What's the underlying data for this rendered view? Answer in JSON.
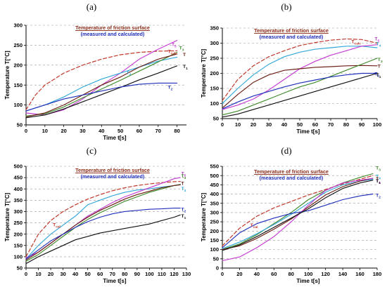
{
  "figure": {
    "series_styles": {
      "T_cal": {
        "color": "#c0392b",
        "dashed": true,
        "label": "T",
        "sub": "cal"
      },
      "T_calc": {
        "color": "#c0392b",
        "dashed": true,
        "label": "T",
        "sub": "calc"
      },
      "T1": {
        "color": "#111111",
        "label": "T",
        "sub": "1"
      },
      "T2": {
        "color": "#1f2fb8",
        "label": "T",
        "sub": "2"
      },
      "T3": {
        "color": "#3f8a2c",
        "label": "T",
        "sub": "3"
      },
      "T4": {
        "color": "#33a8d8",
        "label": "T",
        "sub": "4"
      },
      "T5": {
        "color": "#c23bd0",
        "label": "T",
        "sub": "5"
      },
      "T": {
        "color": "#6b1f14",
        "label": "T",
        "sub": ""
      }
    }
  },
  "chart_data": [
    {
      "panel": "(a)",
      "type": "line",
      "title": "Temperature of friction surface",
      "subtitle": "(measured and calculated)",
      "xlabel": "Time t[s]",
      "ylabel": "Temperature T[°C]",
      "xlim": [
        0,
        85
      ],
      "ylim": [
        50,
        300
      ],
      "xticks": [
        0,
        10,
        20,
        30,
        40,
        50,
        60,
        70,
        80
      ],
      "yticks": [
        50,
        100,
        150,
        200,
        250,
        300
      ],
      "grid": true,
      "series": [
        {
          "key": "T_calc",
          "x": [
            0,
            5,
            10,
            20,
            30,
            40,
            50,
            60,
            70,
            80
          ],
          "y": [
            88,
            125,
            150,
            180,
            200,
            215,
            226,
            232,
            235,
            236
          ]
        },
        {
          "key": "T5",
          "x": [
            0,
            10,
            20,
            30,
            40,
            50,
            60,
            70,
            80
          ],
          "y": [
            80,
            75,
            88,
            115,
            150,
            180,
            215,
            240,
            262
          ]
        },
        {
          "key": "T4",
          "x": [
            0,
            10,
            20,
            30,
            40,
            50,
            60,
            70,
            80
          ],
          "y": [
            85,
            100,
            120,
            145,
            165,
            180,
            195,
            210,
            220
          ]
        },
        {
          "key": "T3",
          "x": [
            0,
            10,
            20,
            30,
            40,
            50,
            60,
            70,
            80
          ],
          "y": [
            72,
            78,
            95,
            118,
            140,
            162,
            185,
            208,
            232
          ]
        },
        {
          "key": "T",
          "x": [
            0,
            10,
            20,
            30,
            40,
            50,
            60,
            70,
            80
          ],
          "y": [
            70,
            80,
            100,
            125,
            150,
            170,
            195,
            215,
            228
          ]
        },
        {
          "key": "T1",
          "x": [
            0,
            10,
            20,
            30,
            40,
            50,
            60,
            70,
            80
          ],
          "y": [
            68,
            75,
            90,
            108,
            126,
            144,
            163,
            180,
            198
          ]
        },
        {
          "key": "T2",
          "x": [
            0,
            10,
            20,
            30,
            40,
            50,
            60,
            70,
            80
          ],
          "y": [
            85,
            100,
            115,
            125,
            135,
            145,
            152,
            155,
            155
          ]
        }
      ]
    },
    {
      "panel": "(b)",
      "type": "line",
      "title": "Temperature of friction surface",
      "subtitle": "(measured and calculated)",
      "xlabel": "Time t[s]",
      "ylabel": "Temperature T[°C]",
      "xlim": [
        0,
        100
      ],
      "ylim": [
        50,
        350
      ],
      "xticks": [
        0,
        10,
        20,
        30,
        40,
        50,
        60,
        70,
        80,
        90,
        100
      ],
      "yticks": [
        50,
        100,
        150,
        200,
        250,
        300,
        350
      ],
      "grid": true,
      "series": [
        {
          "key": "T_calc",
          "x": [
            0,
            10,
            20,
            30,
            40,
            50,
            60,
            70,
            80,
            90,
            100
          ],
          "y": [
            110,
            180,
            225,
            255,
            275,
            292,
            302,
            310,
            314,
            312,
            300
          ]
        },
        {
          "key": "T4",
          "x": [
            0,
            10,
            20,
            30,
            40,
            50,
            60,
            70,
            80,
            90,
            100
          ],
          "y": [
            100,
            150,
            195,
            230,
            255,
            270,
            280,
            285,
            290,
            290,
            285
          ]
        },
        {
          "key": "T5",
          "x": [
            0,
            10,
            20,
            30,
            40,
            50,
            60,
            70,
            80,
            90,
            100
          ],
          "y": [
            80,
            95,
            115,
            145,
            180,
            215,
            240,
            260,
            275,
            290,
            295
          ]
        },
        {
          "key": "T",
          "x": [
            0,
            10,
            20,
            30,
            40,
            50,
            60,
            70,
            80,
            90,
            100
          ],
          "y": [
            85,
            130,
            170,
            195,
            210,
            215,
            220,
            222,
            225,
            226,
            225
          ]
        },
        {
          "key": "T3",
          "x": [
            0,
            10,
            20,
            30,
            40,
            50,
            60,
            70,
            80,
            90,
            100
          ],
          "y": [
            62,
            75,
            95,
            115,
            135,
            155,
            170,
            190,
            210,
            230,
            250
          ]
        },
        {
          "key": "T2",
          "x": [
            0,
            10,
            20,
            30,
            40,
            50,
            60,
            70,
            80,
            90,
            100
          ],
          "y": [
            82,
            105,
            125,
            140,
            155,
            168,
            178,
            188,
            195,
            200,
            200
          ]
        },
        {
          "key": "T1",
          "x": [
            0,
            10,
            20,
            30,
            40,
            50,
            60,
            70,
            80,
            90,
            100
          ],
          "y": [
            55,
            65,
            80,
            95,
            110,
            125,
            140,
            155,
            170,
            185,
            200
          ]
        }
      ]
    },
    {
      "panel": "(c)",
      "type": "line",
      "title": "Temperature of friction surface",
      "subtitle": "(measured and calculated)",
      "xlabel": "Time t[s]",
      "ylabel": "Temperature T[°C]",
      "xlim": [
        0,
        130
      ],
      "ylim": [
        50,
        500
      ],
      "xticks": [
        0,
        10,
        20,
        30,
        40,
        50,
        60,
        70,
        80,
        90,
        100,
        110,
        120,
        130
      ],
      "yticks": [
        50,
        100,
        150,
        200,
        250,
        300,
        350,
        400,
        450,
        500
      ],
      "grid": true,
      "series": [
        {
          "key": "T_cal",
          "x": [
            0,
            10,
            20,
            30,
            40,
            50,
            60,
            70,
            80,
            90,
            100,
            110,
            120,
            125
          ],
          "y": [
            100,
            200,
            260,
            300,
            330,
            355,
            375,
            392,
            405,
            415,
            422,
            428,
            432,
            433
          ]
        },
        {
          "key": "T4",
          "x": [
            0,
            10,
            20,
            30,
            40,
            50,
            60,
            70,
            80,
            90,
            100,
            110,
            120,
            125
          ],
          "y": [
            90,
            150,
            200,
            240,
            280,
            330,
            350,
            370,
            385,
            395,
            400,
            408,
            415,
            420
          ]
        },
        {
          "key": "T5",
          "x": [
            0,
            10,
            20,
            30,
            40,
            50,
            60,
            70,
            80,
            90,
            100,
            110,
            120,
            125
          ],
          "y": [
            95,
            120,
            160,
            200,
            240,
            280,
            310,
            340,
            365,
            385,
            405,
            425,
            445,
            450
          ]
        },
        {
          "key": "T3",
          "x": [
            0,
            10,
            20,
            30,
            40,
            50,
            60,
            70,
            80,
            90,
            100,
            110,
            120,
            125
          ],
          "y": [
            80,
            110,
            150,
            190,
            230,
            265,
            295,
            320,
            345,
            365,
            385,
            400,
            415,
            420
          ]
        },
        {
          "key": "T",
          "x": [
            0,
            10,
            20,
            30,
            40,
            50,
            60,
            70,
            80,
            90,
            100,
            110,
            120,
            125
          ],
          "y": [
            85,
            120,
            160,
            200,
            240,
            275,
            305,
            330,
            355,
            375,
            390,
            405,
            415,
            418
          ]
        },
        {
          "key": "T2",
          "x": [
            0,
            10,
            20,
            30,
            40,
            50,
            60,
            70,
            80,
            90,
            100,
            110,
            120,
            125
          ],
          "y": [
            90,
            130,
            170,
            200,
            230,
            255,
            275,
            290,
            300,
            305,
            310,
            312,
            315,
            315
          ]
        },
        {
          "key": "T1",
          "x": [
            0,
            10,
            20,
            30,
            40,
            50,
            60,
            70,
            80,
            90,
            100,
            110,
            120,
            125
          ],
          "y": [
            70,
            100,
            125,
            150,
            175,
            190,
            205,
            215,
            225,
            235,
            245,
            260,
            275,
            285
          ]
        }
      ]
    },
    {
      "panel": "(d)",
      "type": "line",
      "title": "Temperature of friction surface",
      "subtitle": "(measured and calculated)",
      "xlabel": "Time t[s]",
      "ylabel": "Temperature T[°C]",
      "xlim": [
        0,
        180
      ],
      "ylim": [
        0,
        550
      ],
      "xticks": [
        0,
        20,
        40,
        60,
        80,
        100,
        120,
        140,
        160,
        180
      ],
      "yticks": [
        0,
        50,
        100,
        150,
        200,
        250,
        300,
        350,
        400,
        450,
        500,
        550
      ],
      "grid": true,
      "series": [
        {
          "key": "T_cal",
          "x": [
            0,
            20,
            40,
            60,
            80,
            100,
            120,
            140,
            160,
            175
          ],
          "y": [
            120,
            215,
            280,
            325,
            360,
            395,
            425,
            455,
            480,
            500
          ]
        },
        {
          "key": "T3",
          "x": [
            0,
            20,
            40,
            60,
            80,
            100,
            120,
            140,
            160,
            175
          ],
          "y": [
            100,
            130,
            180,
            240,
            300,
            370,
            420,
            460,
            490,
            510
          ]
        },
        {
          "key": "T4",
          "x": [
            0,
            20,
            40,
            60,
            80,
            100,
            120,
            140,
            160,
            175
          ],
          "y": [
            105,
            140,
            185,
            235,
            290,
            350,
            410,
            450,
            470,
            480
          ]
        },
        {
          "key": "T",
          "x": [
            0,
            20,
            40,
            60,
            80,
            100,
            120,
            140,
            160,
            175
          ],
          "y": [
            100,
            120,
            160,
            210,
            265,
            330,
            395,
            440,
            470,
            485
          ]
        },
        {
          "key": "T5",
          "x": [
            0,
            20,
            40,
            60,
            80,
            100,
            120,
            140,
            160,
            175
          ],
          "y": [
            40,
            60,
            110,
            170,
            250,
            340,
            420,
            460,
            475,
            485
          ]
        },
        {
          "key": "T2",
          "x": [
            0,
            20,
            40,
            60,
            80,
            100,
            120,
            140,
            160,
            175
          ],
          "y": [
            110,
            190,
            240,
            270,
            295,
            310,
            340,
            370,
            390,
            400
          ]
        },
        {
          "key": "T1",
          "x": [
            0,
            20,
            40,
            60,
            80,
            100,
            120,
            140,
            160,
            175
          ],
          "y": [
            95,
            125,
            170,
            220,
            270,
            320,
            380,
            430,
            460,
            475
          ]
        }
      ]
    }
  ]
}
